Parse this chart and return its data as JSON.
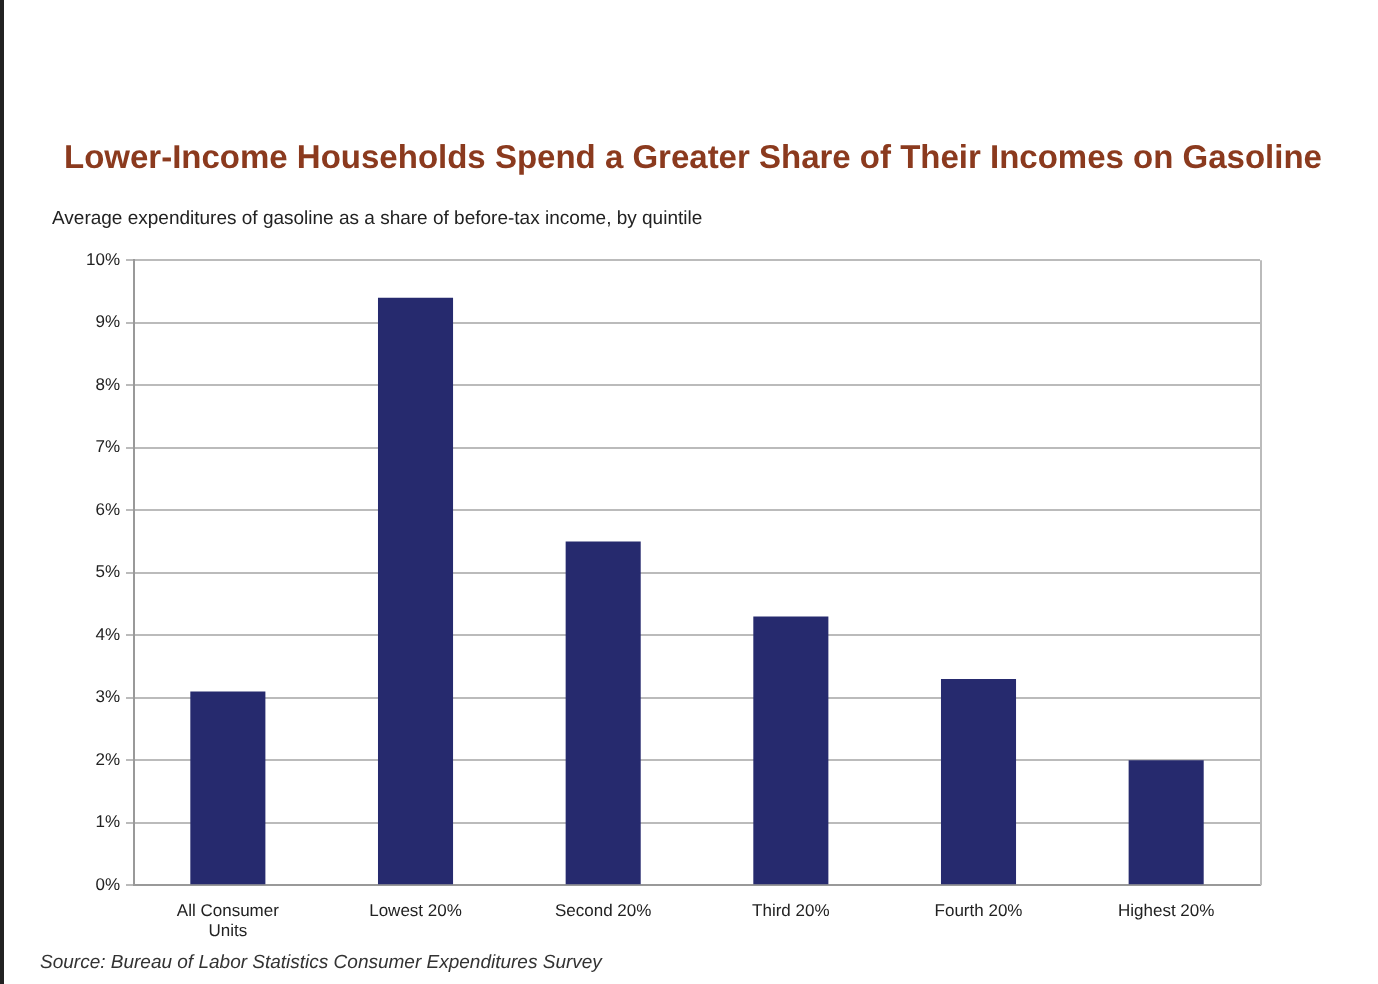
{
  "chart_data": {
    "type": "bar",
    "title": "Lower-Income Households Spend a Greater Share of Their Incomes on Gasoline",
    "subtitle": "Average expenditures of gasoline as a share of before-tax income, by quintile",
    "categories": [
      "All Consumer Units",
      "Lowest 20%",
      "Second 20%",
      "Third 20%",
      "Fourth 20%",
      "Highest 20%"
    ],
    "values": [
      3.1,
      9.4,
      5.5,
      4.3,
      3.3,
      2.0
    ],
    "color": "#262a6e",
    "ylim": [
      0,
      10
    ],
    "yticks": [
      {
        "value": 0,
        "label": "0%"
      },
      {
        "value": 1,
        "label": "1%"
      },
      {
        "value": 2,
        "label": "2%"
      },
      {
        "value": 3,
        "label": "3%"
      },
      {
        "value": 4,
        "label": "4%"
      },
      {
        "value": 5,
        "label": "5%"
      },
      {
        "value": 6,
        "label": "6%"
      },
      {
        "value": 7,
        "label": "7%"
      },
      {
        "value": 8,
        "label": "8%"
      },
      {
        "value": 9,
        "label": "9%"
      },
      {
        "value": 10,
        "label": "10%"
      }
    ],
    "grid": "y",
    "legend": false,
    "annotations": [
      "Source: Bureau of Labor Statistics Consumer Expenditures Survey"
    ]
  }
}
